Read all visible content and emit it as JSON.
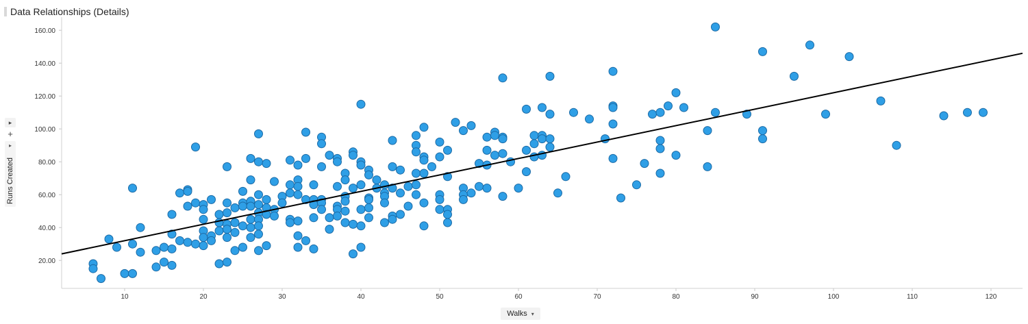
{
  "panel": {
    "title": "Data Relationships (Details)"
  },
  "controls": {
    "expand_glyph": "▸",
    "add_glyph": "+",
    "axis_menu_glyph": "▾"
  },
  "chart_data": {
    "type": "scatter",
    "title": "Data Relationships (Details)",
    "xlabel": "Walks",
    "ylabel": "Runs Created",
    "xlim": [
      2,
      124
    ],
    "ylim": [
      3,
      168
    ],
    "x_ticks": [
      "10",
      "20",
      "30",
      "40",
      "50",
      "60",
      "70",
      "80",
      "90",
      "100",
      "110",
      "120"
    ],
    "y_ticks": [
      "20.00",
      "40.00",
      "60.00",
      "80.00",
      "100.00",
      "120.00",
      "140.00",
      "160.00"
    ],
    "grid": false,
    "point_color": "#2f9fe6",
    "point_stroke": "#1b6aa5",
    "trend_color": "#000000",
    "trendline": {
      "x": [
        2,
        124
      ],
      "y": [
        24,
        146
      ]
    },
    "points": [
      [
        6,
        18
      ],
      [
        6,
        15
      ],
      [
        7,
        9
      ],
      [
        8,
        33
      ],
      [
        9,
        28
      ],
      [
        10,
        12
      ],
      [
        11,
        12
      ],
      [
        11,
        30
      ],
      [
        11,
        64
      ],
      [
        12,
        25
      ],
      [
        12,
        40
      ],
      [
        14,
        26
      ],
      [
        14,
        16
      ],
      [
        15,
        28
      ],
      [
        15,
        19
      ],
      [
        16,
        17
      ],
      [
        16,
        27
      ],
      [
        16,
        48
      ],
      [
        16,
        36
      ],
      [
        17,
        32
      ],
      [
        17,
        61
      ],
      [
        18,
        31
      ],
      [
        18,
        53
      ],
      [
        18,
        63
      ],
      [
        18,
        62
      ],
      [
        19,
        30
      ],
      [
        19,
        55
      ],
      [
        19,
        89
      ],
      [
        20,
        54
      ],
      [
        20,
        51
      ],
      [
        20,
        45
      ],
      [
        20,
        38
      ],
      [
        20,
        34
      ],
      [
        20,
        29
      ],
      [
        21,
        57
      ],
      [
        21,
        35
      ],
      [
        21,
        32
      ],
      [
        22,
        48
      ],
      [
        22,
        43
      ],
      [
        22,
        38
      ],
      [
        22,
        18
      ],
      [
        23,
        77
      ],
      [
        23,
        55
      ],
      [
        23,
        49
      ],
      [
        23,
        42
      ],
      [
        23,
        39
      ],
      [
        23,
        34
      ],
      [
        23,
        19
      ],
      [
        24,
        52
      ],
      [
        24,
        43
      ],
      [
        24,
        37
      ],
      [
        24,
        26
      ],
      [
        25,
        62
      ],
      [
        25,
        55
      ],
      [
        25,
        53
      ],
      [
        25,
        41
      ],
      [
        25,
        28
      ],
      [
        26,
        82
      ],
      [
        26,
        69
      ],
      [
        26,
        56
      ],
      [
        26,
        53
      ],
      [
        26,
        45
      ],
      [
        26,
        40
      ],
      [
        26,
        34
      ],
      [
        27,
        97
      ],
      [
        27,
        80
      ],
      [
        27,
        60
      ],
      [
        27,
        54
      ],
      [
        27,
        49
      ],
      [
        27,
        45
      ],
      [
        27,
        41
      ],
      [
        27,
        36
      ],
      [
        27,
        26
      ],
      [
        28,
        79
      ],
      [
        28,
        57
      ],
      [
        28,
        52
      ],
      [
        28,
        48
      ],
      [
        28,
        29
      ],
      [
        29,
        68
      ],
      [
        29,
        51
      ],
      [
        29,
        47
      ],
      [
        30,
        59
      ],
      [
        30,
        55
      ],
      [
        31,
        81
      ],
      [
        31,
        66
      ],
      [
        31,
        61
      ],
      [
        31,
        45
      ],
      [
        31,
        43
      ],
      [
        32,
        78
      ],
      [
        32,
        69
      ],
      [
        32,
        65
      ],
      [
        32,
        60
      ],
      [
        32,
        44
      ],
      [
        32,
        35
      ],
      [
        32,
        28
      ],
      [
        33,
        98
      ],
      [
        33,
        82
      ],
      [
        33,
        57
      ],
      [
        33,
        32
      ],
      [
        34,
        66
      ],
      [
        34,
        57
      ],
      [
        34,
        54
      ],
      [
        34,
        46
      ],
      [
        34,
        27
      ],
      [
        35,
        95
      ],
      [
        35,
        91
      ],
      [
        35,
        77
      ],
      [
        35,
        57
      ],
      [
        35,
        55
      ],
      [
        35,
        51
      ],
      [
        36,
        84
      ],
      [
        36,
        46
      ],
      [
        36,
        39
      ],
      [
        37,
        82
      ],
      [
        37,
        80
      ],
      [
        37,
        65
      ],
      [
        37,
        53
      ],
      [
        37,
        51
      ],
      [
        37,
        47
      ],
      [
        38,
        73
      ],
      [
        38,
        69
      ],
      [
        38,
        59
      ],
      [
        38,
        56
      ],
      [
        38,
        50
      ],
      [
        38,
        43
      ],
      [
        39,
        86
      ],
      [
        39,
        84
      ],
      [
        39,
        64
      ],
      [
        39,
        42
      ],
      [
        39,
        24
      ],
      [
        40,
        115
      ],
      [
        40,
        80
      ],
      [
        40,
        78
      ],
      [
        40,
        66
      ],
      [
        40,
        51
      ],
      [
        40,
        41
      ],
      [
        40,
        28
      ],
      [
        41,
        75
      ],
      [
        41,
        72
      ],
      [
        41,
        58
      ],
      [
        41,
        57
      ],
      [
        41,
        52
      ],
      [
        41,
        46
      ],
      [
        42,
        69
      ],
      [
        42,
        64
      ],
      [
        43,
        66
      ],
      [
        43,
        61
      ],
      [
        43,
        59
      ],
      [
        43,
        55
      ],
      [
        43,
        43
      ],
      [
        44,
        93
      ],
      [
        44,
        77
      ],
      [
        44,
        64
      ],
      [
        44,
        47
      ],
      [
        44,
        45
      ],
      [
        45,
        75
      ],
      [
        45,
        61
      ],
      [
        45,
        48
      ],
      [
        46,
        65
      ],
      [
        46,
        53
      ],
      [
        47,
        96
      ],
      [
        47,
        90
      ],
      [
        47,
        86
      ],
      [
        47,
        73
      ],
      [
        47,
        66
      ],
      [
        47,
        60
      ],
      [
        48,
        101
      ],
      [
        48,
        83
      ],
      [
        48,
        81
      ],
      [
        48,
        73
      ],
      [
        48,
        55
      ],
      [
        48,
        41
      ],
      [
        49,
        77
      ],
      [
        50,
        92
      ],
      [
        50,
        83
      ],
      [
        50,
        60
      ],
      [
        50,
        57
      ],
      [
        50,
        51
      ],
      [
        51,
        87
      ],
      [
        51,
        71
      ],
      [
        51,
        51
      ],
      [
        51,
        48
      ],
      [
        51,
        43
      ],
      [
        52,
        104
      ],
      [
        53,
        99
      ],
      [
        53,
        64
      ],
      [
        53,
        60
      ],
      [
        53,
        57
      ],
      [
        54,
        102
      ],
      [
        54,
        61
      ],
      [
        55,
        79
      ],
      [
        55,
        65
      ],
      [
        56,
        95
      ],
      [
        56,
        87
      ],
      [
        56,
        78
      ],
      [
        56,
        64
      ],
      [
        57,
        98
      ],
      [
        57,
        96
      ],
      [
        57,
        84
      ],
      [
        58,
        131
      ],
      [
        58,
        95
      ],
      [
        58,
        94
      ],
      [
        58,
        85
      ],
      [
        58,
        59
      ],
      [
        59,
        80
      ],
      [
        60,
        64
      ],
      [
        61,
        112
      ],
      [
        61,
        87
      ],
      [
        61,
        74
      ],
      [
        62,
        96
      ],
      [
        62,
        91
      ],
      [
        62,
        83
      ],
      [
        63,
        113
      ],
      [
        63,
        96
      ],
      [
        63,
        94
      ],
      [
        63,
        84
      ],
      [
        64,
        132
      ],
      [
        64,
        109
      ],
      [
        64,
        94
      ],
      [
        64,
        89
      ],
      [
        65,
        61
      ],
      [
        66,
        71
      ],
      [
        67,
        110
      ],
      [
        69,
        106
      ],
      [
        71,
        94
      ],
      [
        72,
        135
      ],
      [
        72,
        114
      ],
      [
        72,
        113
      ],
      [
        72,
        103
      ],
      [
        72,
        82
      ],
      [
        73,
        58
      ],
      [
        75,
        66
      ],
      [
        76,
        79
      ],
      [
        77,
        109
      ],
      [
        78,
        110
      ],
      [
        78,
        93
      ],
      [
        78,
        88
      ],
      [
        78,
        73
      ],
      [
        79,
        114
      ],
      [
        80,
        122
      ],
      [
        80,
        84
      ],
      [
        81,
        113
      ],
      [
        84,
        99
      ],
      [
        84,
        77
      ],
      [
        85,
        162
      ],
      [
        85,
        110
      ],
      [
        89,
        109
      ],
      [
        91,
        147
      ],
      [
        91,
        99
      ],
      [
        91,
        94
      ],
      [
        95,
        132
      ],
      [
        97,
        151
      ],
      [
        99,
        109
      ],
      [
        102,
        144
      ],
      [
        106,
        117
      ],
      [
        108,
        90
      ],
      [
        114,
        108
      ],
      [
        117,
        110
      ],
      [
        119,
        110
      ]
    ]
  }
}
